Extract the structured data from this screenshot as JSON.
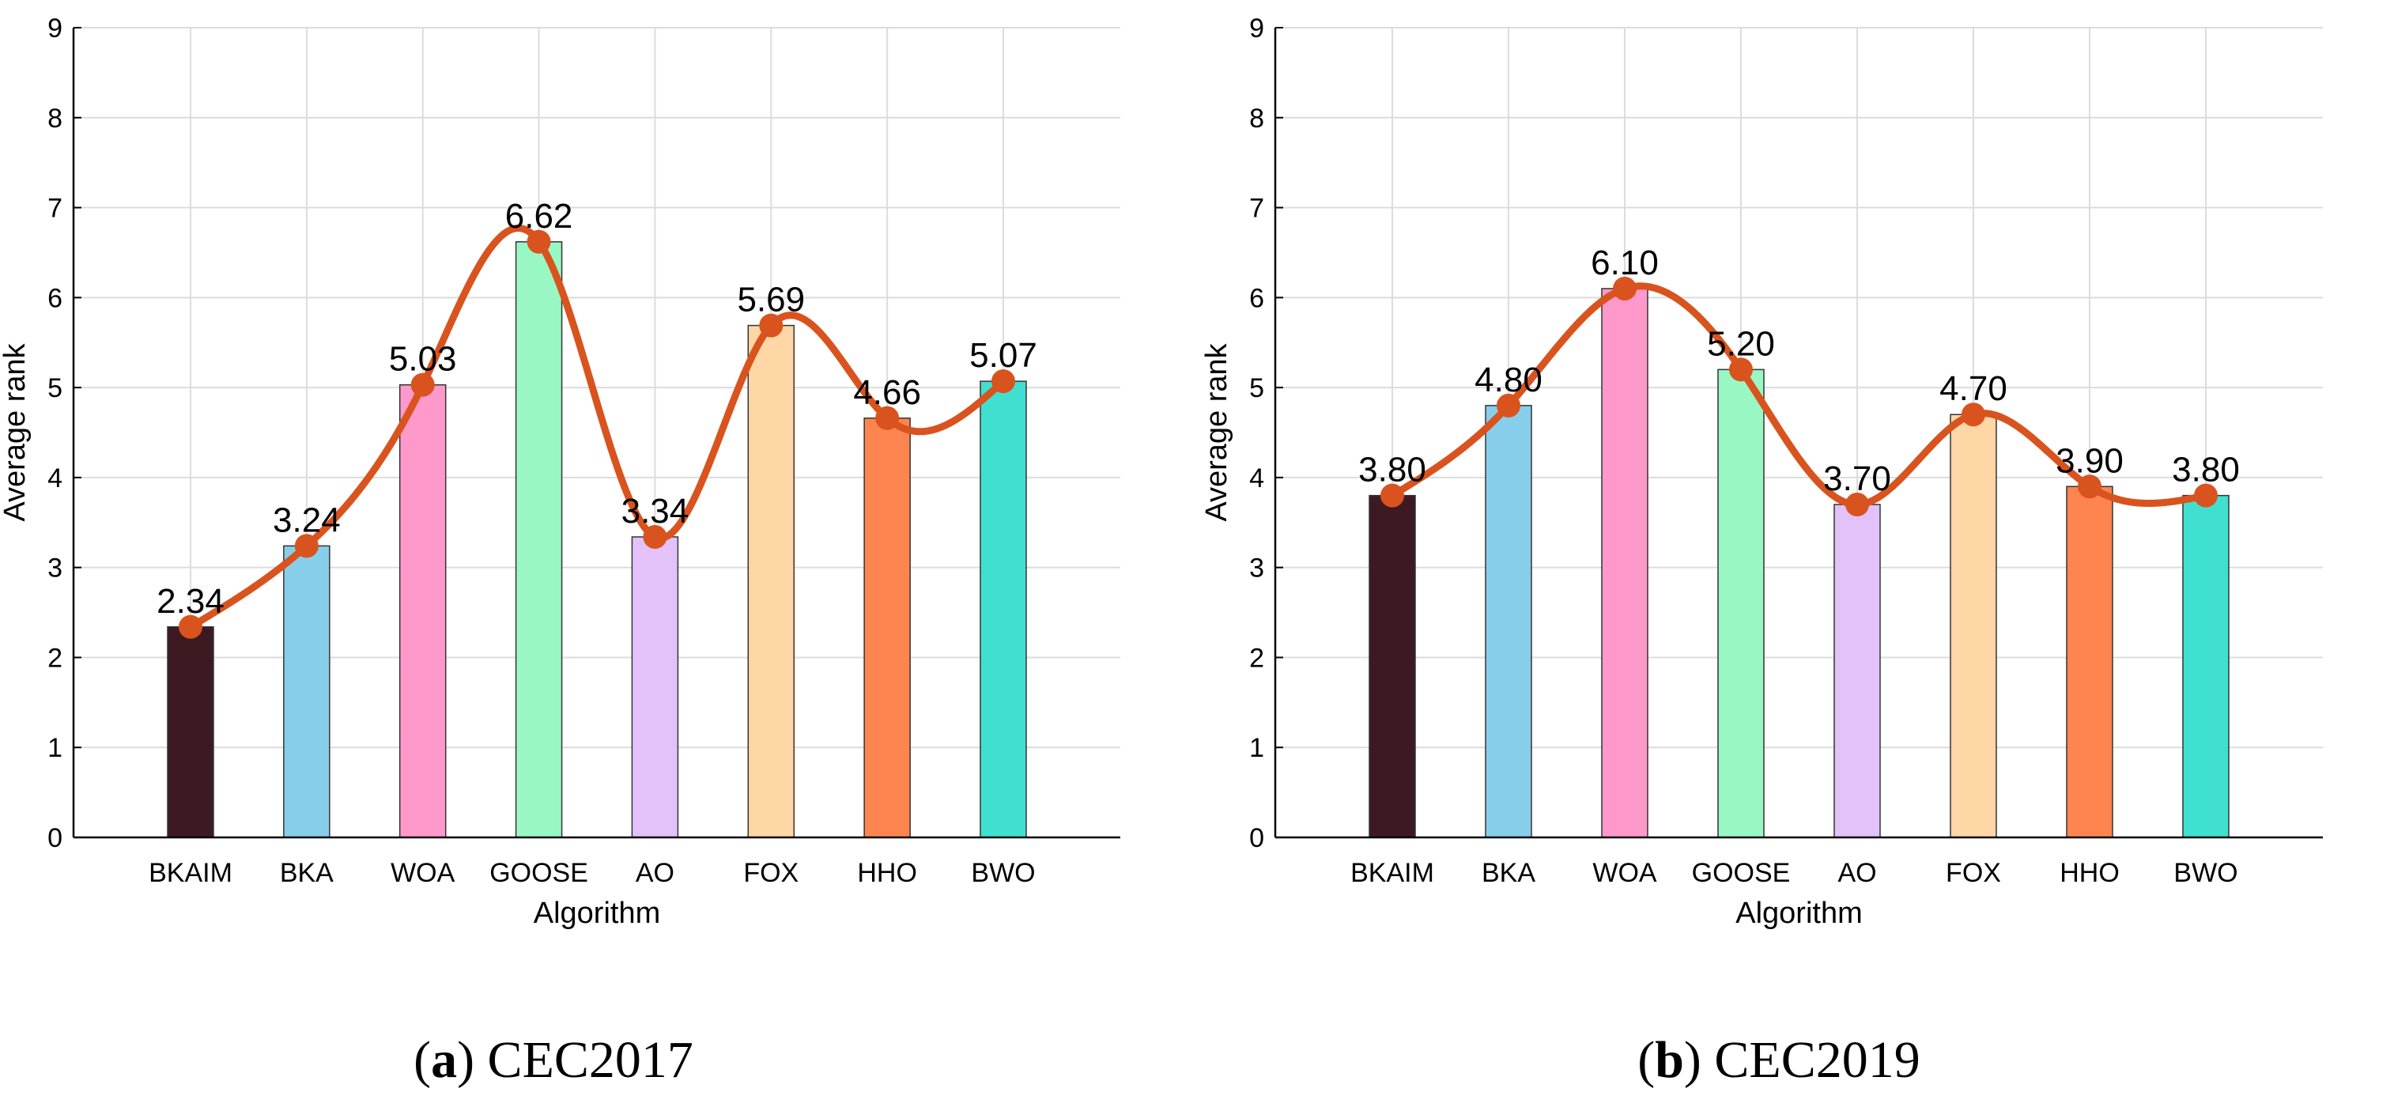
{
  "figure": {
    "colors": {
      "line": "#D9531E",
      "grid": "#DCDCDC",
      "axis": "#000000",
      "bars": [
        "#3D1A22",
        "#87CEEB",
        "#FF99CC",
        "#99F7C4",
        "#E2C2F8",
        "#FFD6A5",
        "#FF8550",
        "#40E0D0"
      ]
    }
  },
  "chart_data": [
    {
      "type": "bar",
      "caption_letter": "a",
      "caption_text": "CEC2017",
      "caption_open": "(",
      "caption_close": ")",
      "categories": [
        "BKAIM",
        "BKA",
        "WOA",
        "GOOSE",
        "AO",
        "FOX",
        "HHO",
        "BWO"
      ],
      "values": [
        2.34,
        3.24,
        5.03,
        6.62,
        3.34,
        5.69,
        4.66,
        5.07
      ],
      "value_labels": [
        "2.34",
        "3.24",
        "5.03",
        "6.62",
        "3.34",
        "5.69",
        "4.66",
        "5.07"
      ],
      "overlay": "smooth line with markers through bar tops",
      "xlabel": "Algorithm",
      "ylabel": "Average rank",
      "ylim": [
        0,
        9
      ],
      "yticks": [
        "0",
        "1",
        "2",
        "3",
        "4",
        "5",
        "6",
        "7",
        "8",
        "9"
      ],
      "grid": true
    },
    {
      "type": "bar",
      "caption_letter": "b",
      "caption_text": "CEC2019",
      "caption_open": "(",
      "caption_close": ")",
      "categories": [
        "BKAIM",
        "BKA",
        "WOA",
        "GOOSE",
        "AO",
        "FOX",
        "HHO",
        "BWO"
      ],
      "values": [
        3.8,
        4.8,
        6.1,
        5.2,
        3.7,
        4.7,
        3.9,
        3.8
      ],
      "value_labels": [
        "3.80",
        "4.80",
        "6.10",
        "5.20",
        "3.70",
        "4.70",
        "3.90",
        "3.80"
      ],
      "overlay": "smooth line with markers through bar tops",
      "xlabel": "Algorithm",
      "ylabel": "Average rank",
      "ylim": [
        0,
        9
      ],
      "yticks": [
        "0",
        "1",
        "2",
        "3",
        "4",
        "5",
        "6",
        "7",
        "8",
        "9"
      ],
      "grid": true
    }
  ]
}
